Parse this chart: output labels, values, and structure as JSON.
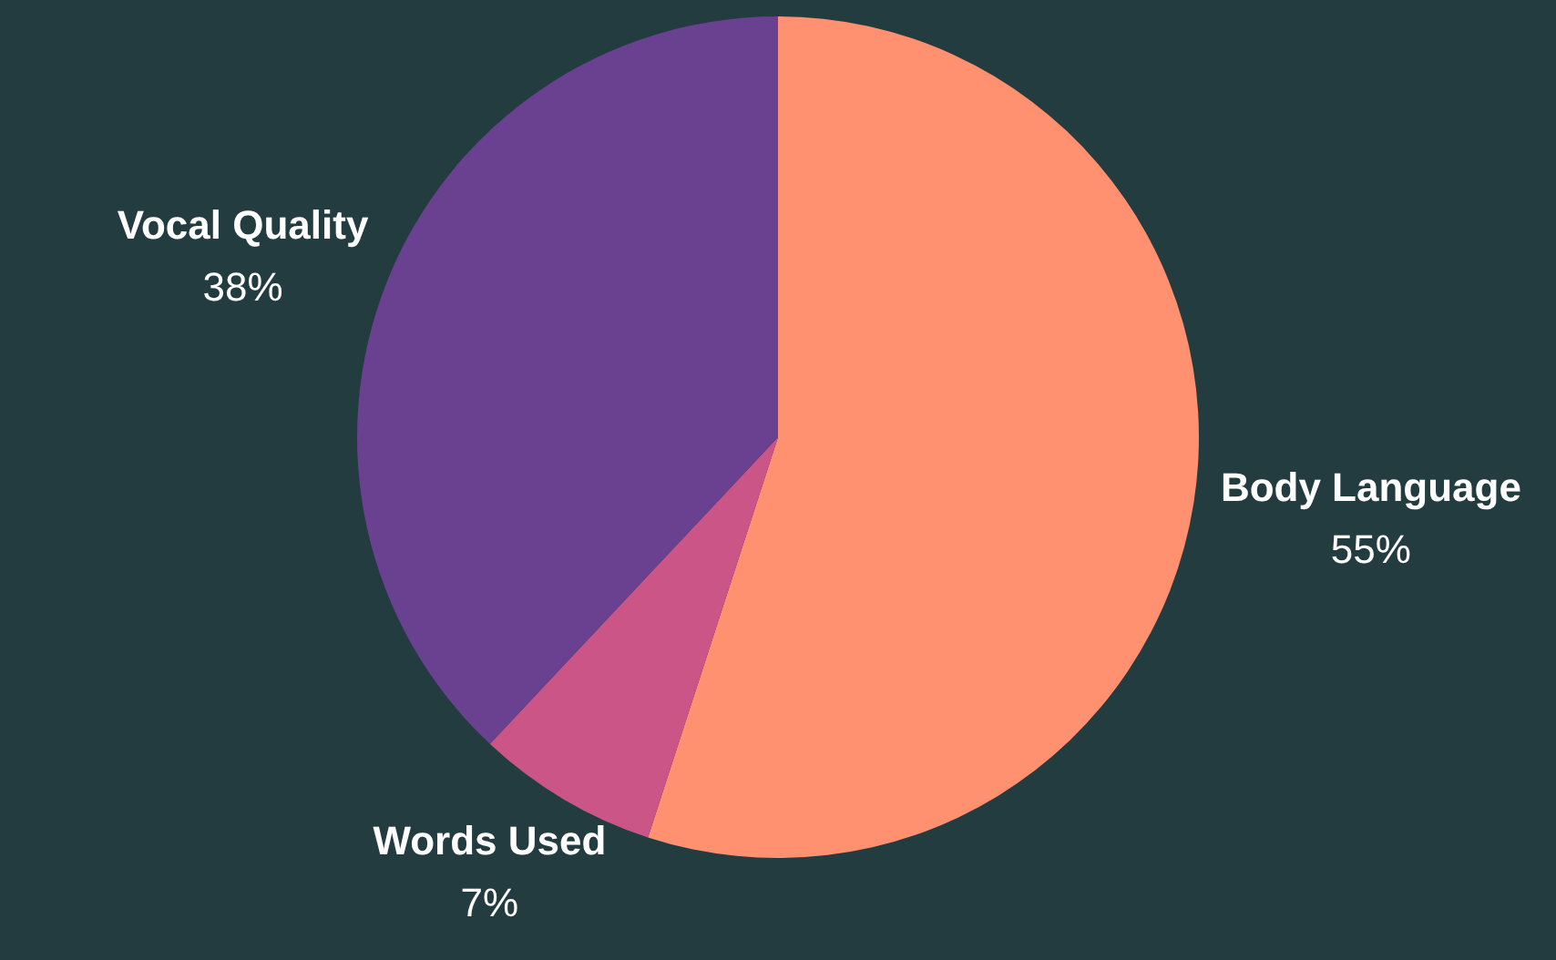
{
  "chart_data": {
    "type": "pie",
    "categories": [
      "Body Language",
      "Words Used",
      "Vocal Quality"
    ],
    "values": [
      55,
      7,
      38
    ],
    "colors": [
      "#ff9070",
      "#cc5588",
      "#6a4090"
    ],
    "value_labels": [
      "55%",
      "7%",
      "38%"
    ],
    "legend": false
  }
}
